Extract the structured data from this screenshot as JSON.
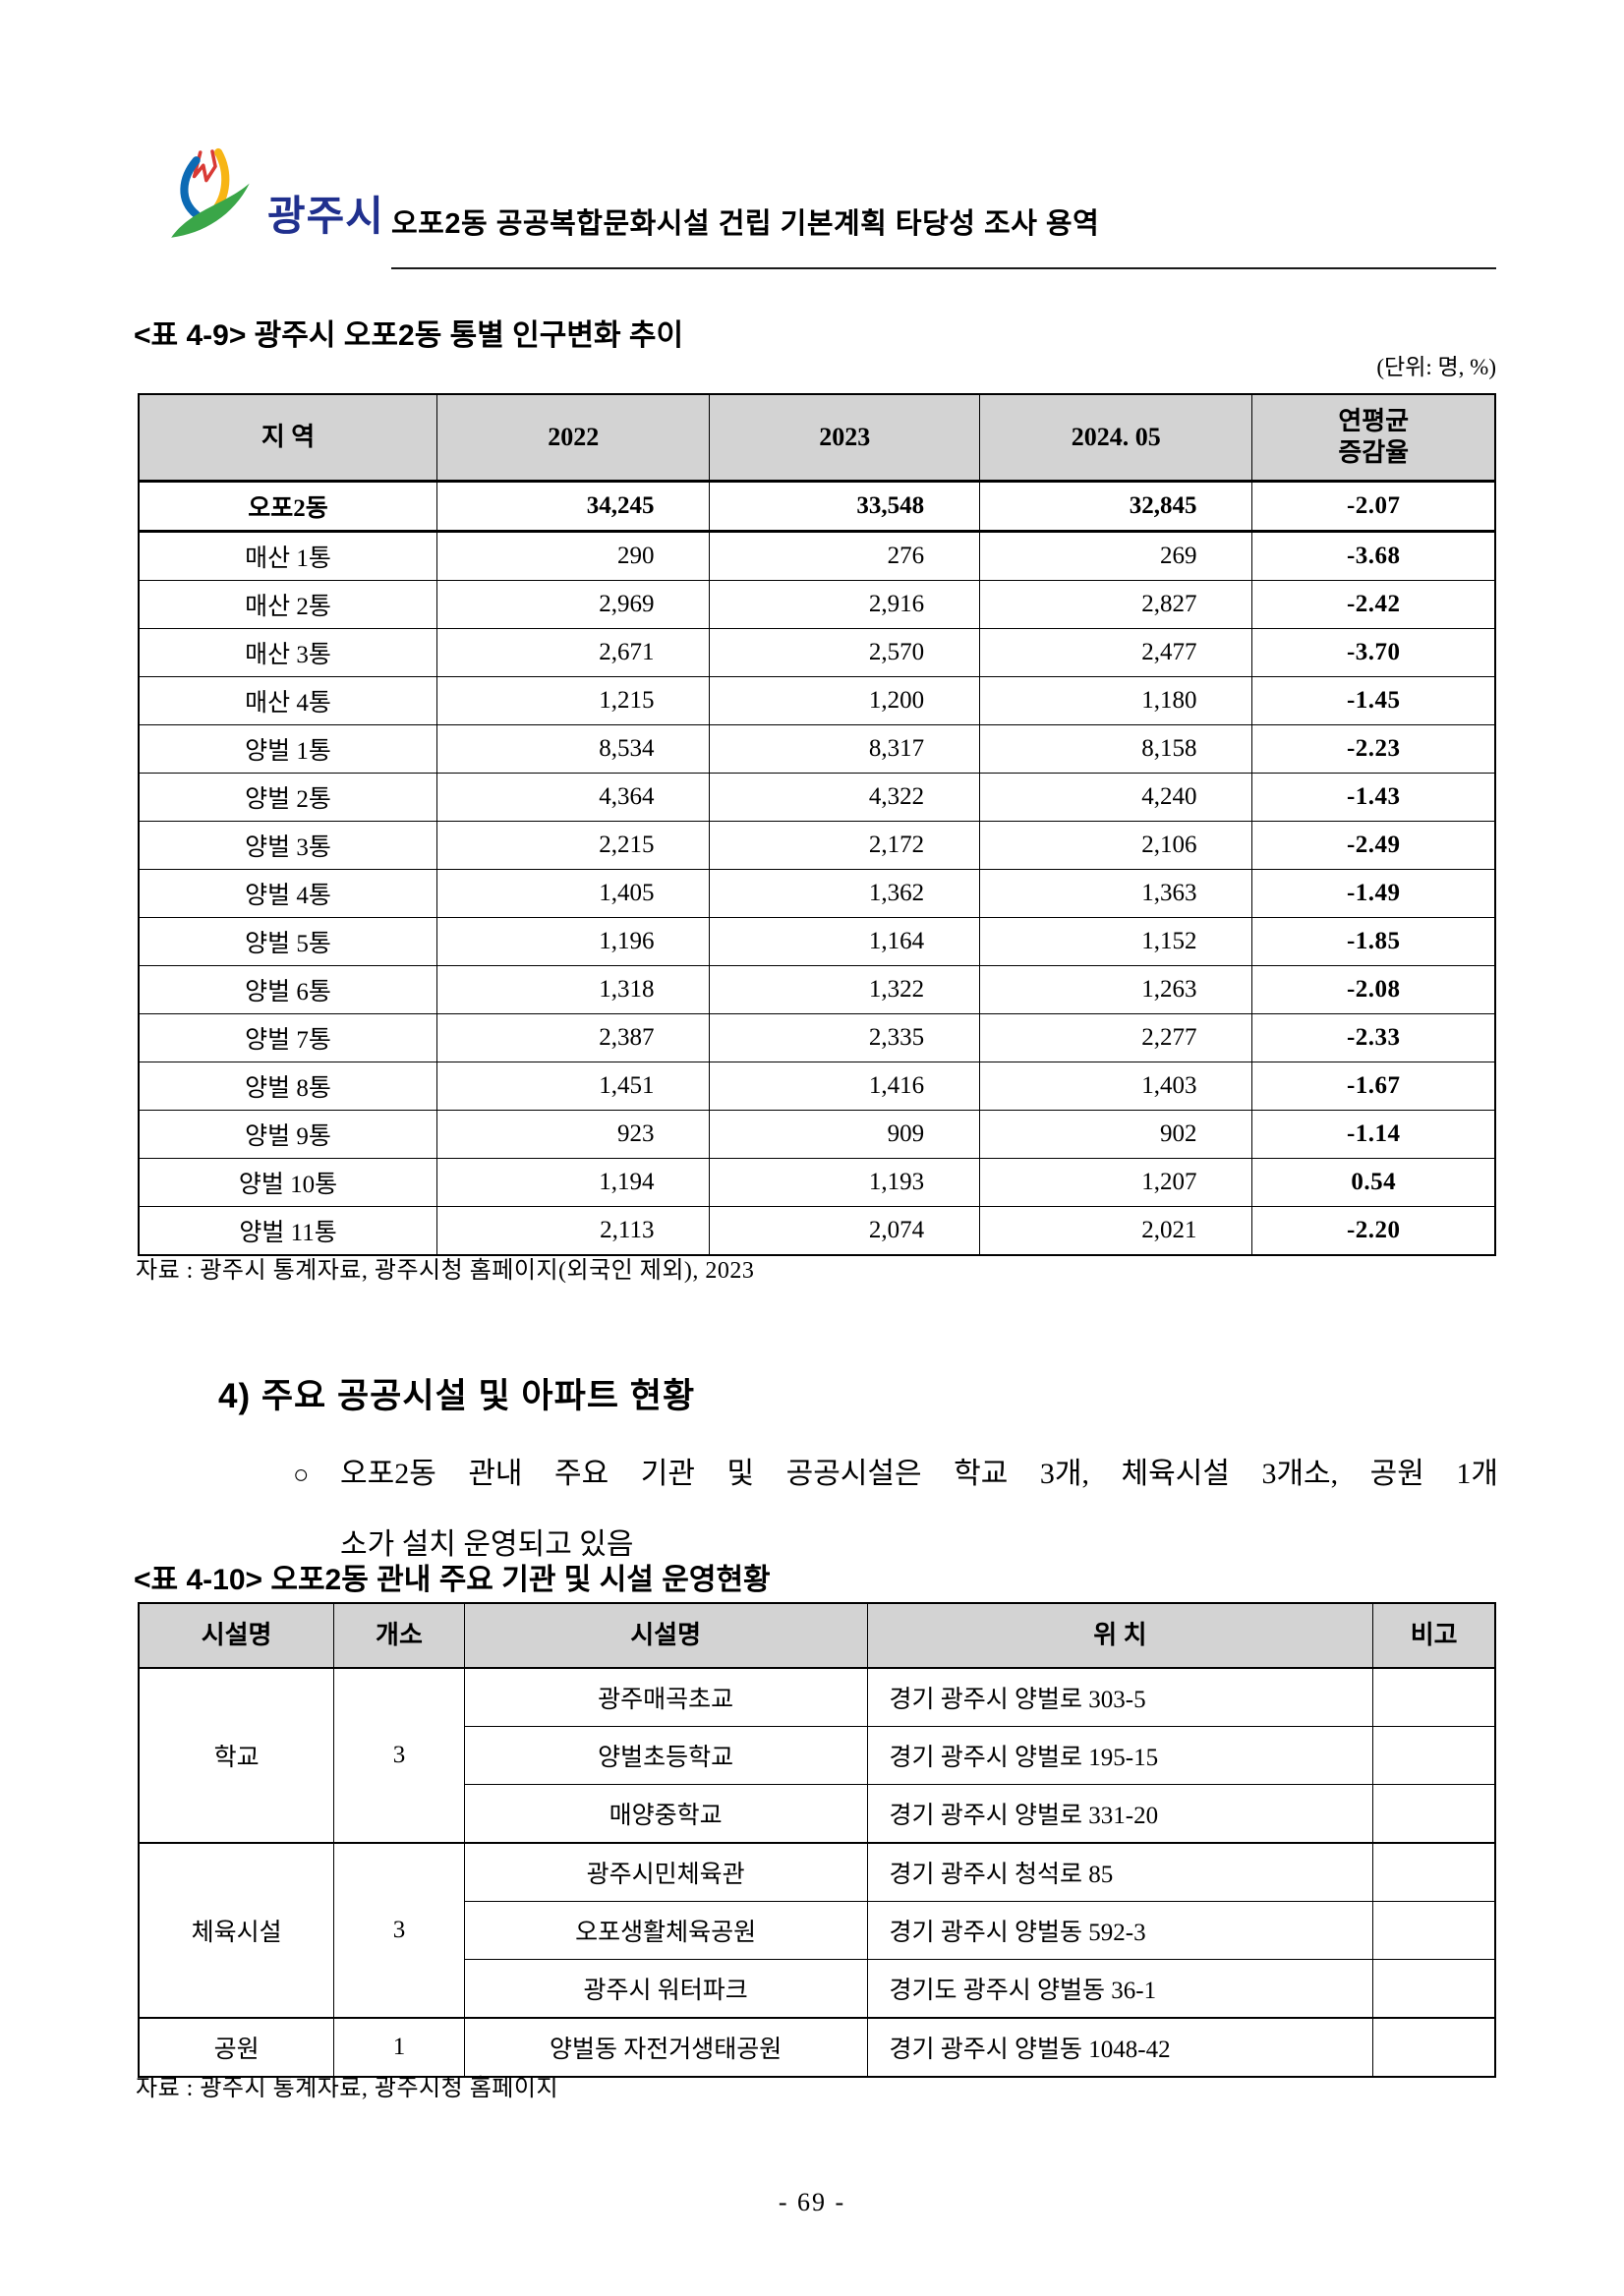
{
  "header": {
    "logo_icon": "gwangju-city-logo",
    "logo_text": "광주시",
    "doc_title": "오포2동 공공복합문화시설 건립 기본계획 타당성 조사 용역"
  },
  "table1": {
    "caption": "<표 4-9> 광주시 오포2동 통별 인구변화 추이",
    "unit_note": "(단위: 명, %)",
    "columns": [
      "지 역",
      "2022",
      "2023",
      "2024. 05",
      "연평균\n증감율"
    ],
    "rows": [
      {
        "bold": true,
        "cells": [
          "오포2동",
          "34,245",
          "33,548",
          "32,845",
          "-2.07"
        ]
      },
      {
        "bold": false,
        "cells": [
          "매산 1통",
          "290",
          "276",
          "269",
          "-3.68"
        ]
      },
      {
        "bold": false,
        "cells": [
          "매산 2통",
          "2,969",
          "2,916",
          "2,827",
          "-2.42"
        ]
      },
      {
        "bold": false,
        "cells": [
          "매산 3통",
          "2,671",
          "2,570",
          "2,477",
          "-3.70"
        ]
      },
      {
        "bold": false,
        "cells": [
          "매산 4통",
          "1,215",
          "1,200",
          "1,180",
          "-1.45"
        ]
      },
      {
        "bold": false,
        "cells": [
          "양벌 1통",
          "8,534",
          "8,317",
          "8,158",
          "-2.23"
        ]
      },
      {
        "bold": false,
        "cells": [
          "양벌 2통",
          "4,364",
          "4,322",
          "4,240",
          "-1.43"
        ]
      },
      {
        "bold": false,
        "cells": [
          "양벌 3통",
          "2,215",
          "2,172",
          "2,106",
          "-2.49"
        ]
      },
      {
        "bold": false,
        "cells": [
          "양벌 4통",
          "1,405",
          "1,362",
          "1,363",
          "-1.49"
        ]
      },
      {
        "bold": false,
        "cells": [
          "양벌 5통",
          "1,196",
          "1,164",
          "1,152",
          "-1.85"
        ]
      },
      {
        "bold": false,
        "cells": [
          "양벌 6통",
          "1,318",
          "1,322",
          "1,263",
          "-2.08"
        ]
      },
      {
        "bold": false,
        "cells": [
          "양벌 7통",
          "2,387",
          "2,335",
          "2,277",
          "-2.33"
        ]
      },
      {
        "bold": false,
        "cells": [
          "양벌 8통",
          "1,451",
          "1,416",
          "1,403",
          "-1.67"
        ]
      },
      {
        "bold": false,
        "cells": [
          "양벌 9통",
          "923",
          "909",
          "902",
          "-1.14"
        ]
      },
      {
        "bold": false,
        "cells": [
          "양벌 10통",
          "1,194",
          "1,193",
          "1,207",
          "0.54"
        ]
      },
      {
        "bold": false,
        "cells": [
          "양벌 11통",
          "2,113",
          "2,074",
          "2,021",
          "-2.20"
        ]
      }
    ],
    "source": "자료 : 광주시 통계자료, 광주시청 홈페이지(외국인 제외), 2023"
  },
  "section": {
    "heading": "4) 주요 공공시설 및 아파트 현황",
    "bullet_marker": "○",
    "bullet_line1": "오포2동 관내 주요 기관 및 공공시설은 학교 3개, 체육시설 3개소, 공원 1개",
    "bullet_line2": "소가 설치 운영되고 있음"
  },
  "table2": {
    "caption": "<표 4-10> 오포2동 관내 주요 기관 및 시설 운영현황",
    "columns": [
      "시설명",
      "개소",
      "시설명",
      "위 치",
      "비고"
    ],
    "groups": [
      {
        "category": "학교",
        "count": "3",
        "facilities": [
          {
            "name": "광주매곡초교",
            "location": "경기 광주시 양벌로 303-5",
            "note": ""
          },
          {
            "name": "양벌초등학교",
            "location": "경기 광주시 양벌로 195-15",
            "note": ""
          },
          {
            "name": "매양중학교",
            "location": "경기 광주시 양벌로 331-20",
            "note": ""
          }
        ]
      },
      {
        "category": "체육시설",
        "count": "3",
        "facilities": [
          {
            "name": "광주시민체육관",
            "location": "경기 광주시 청석로 85",
            "note": ""
          },
          {
            "name": "오포생활체육공원",
            "location": "경기 광주시 양벌동 592-3",
            "note": ""
          },
          {
            "name": "광주시 워터파크",
            "location": "경기도 광주시 양벌동 36-1",
            "note": ""
          }
        ]
      },
      {
        "category": "공원",
        "count": "1",
        "facilities": [
          {
            "name": "양벌동 자전거생태공원",
            "location": "경기 광주시 양벌동 1048-42",
            "note": ""
          }
        ]
      }
    ],
    "source": "자료 : 광주시 통계자료, 광주시청 홈페이지"
  },
  "footer": {
    "page_number": "- 69 -"
  },
  "colors": {
    "logo_text_blue": "#20308e",
    "logo_red": "#d93a35",
    "logo_blue": "#0c6ab4",
    "logo_yellow": "#f7b515",
    "logo_green": "#3aa648",
    "table_header_bg": "#d3d3d3"
  }
}
